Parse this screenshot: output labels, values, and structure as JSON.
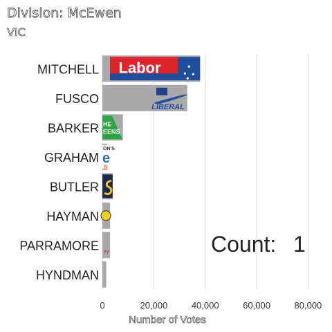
{
  "chart_data": {
    "type": "bar",
    "orientation": "horizontal",
    "title": "Division: McEwen",
    "subtitle": "VIC",
    "xlabel": "Number of Votes",
    "ylabel": "",
    "xlim": [
      0,
      85000
    ],
    "x_ticks": [
      0,
      20000,
      40000,
      60000,
      80000
    ],
    "x_tick_labels": [
      "0",
      "20,000",
      "40,000",
      "60,000",
      "80,000"
    ],
    "grid": "vertical",
    "categories": [
      "MITCHELL",
      "FUSCO",
      "BARKER",
      "GRAHAM",
      "BUTLER",
      "HAYMAN",
      "PARRAMORE",
      "HYNDMAN"
    ],
    "values": [
      38000,
      33000,
      8000,
      2000,
      4000,
      3000,
      3000,
      1500
    ],
    "annotation": {
      "prefix": "Count:",
      "value": "1"
    }
  },
  "logos": {
    "labor": {
      "text": "Labor",
      "bg": "#e1232b",
      "stripe": "#1f4e9c"
    },
    "liberal": {
      "text": "LIBERAL",
      "color": "#1f4e9c"
    },
    "greens": {
      "text": "HE\nEENS",
      "bg": "#2aa541"
    },
    "graham": {
      "text_top": "ON'S",
      "text_mid": "e",
      "text_bot": "N",
      "blue": "#1f6fb7",
      "orange": "#e87722"
    },
    "butler": {
      "bg": "#1b2a52",
      "color": "#f4c400"
    },
    "hayman": {
      "color": "#f2d01a"
    },
    "parramore": {
      "text": "TY",
      "color": "#c0272d"
    }
  },
  "colors": {
    "bar": "#a9a9a9",
    "grid": "#e2e2e2",
    "text": "#222222"
  }
}
